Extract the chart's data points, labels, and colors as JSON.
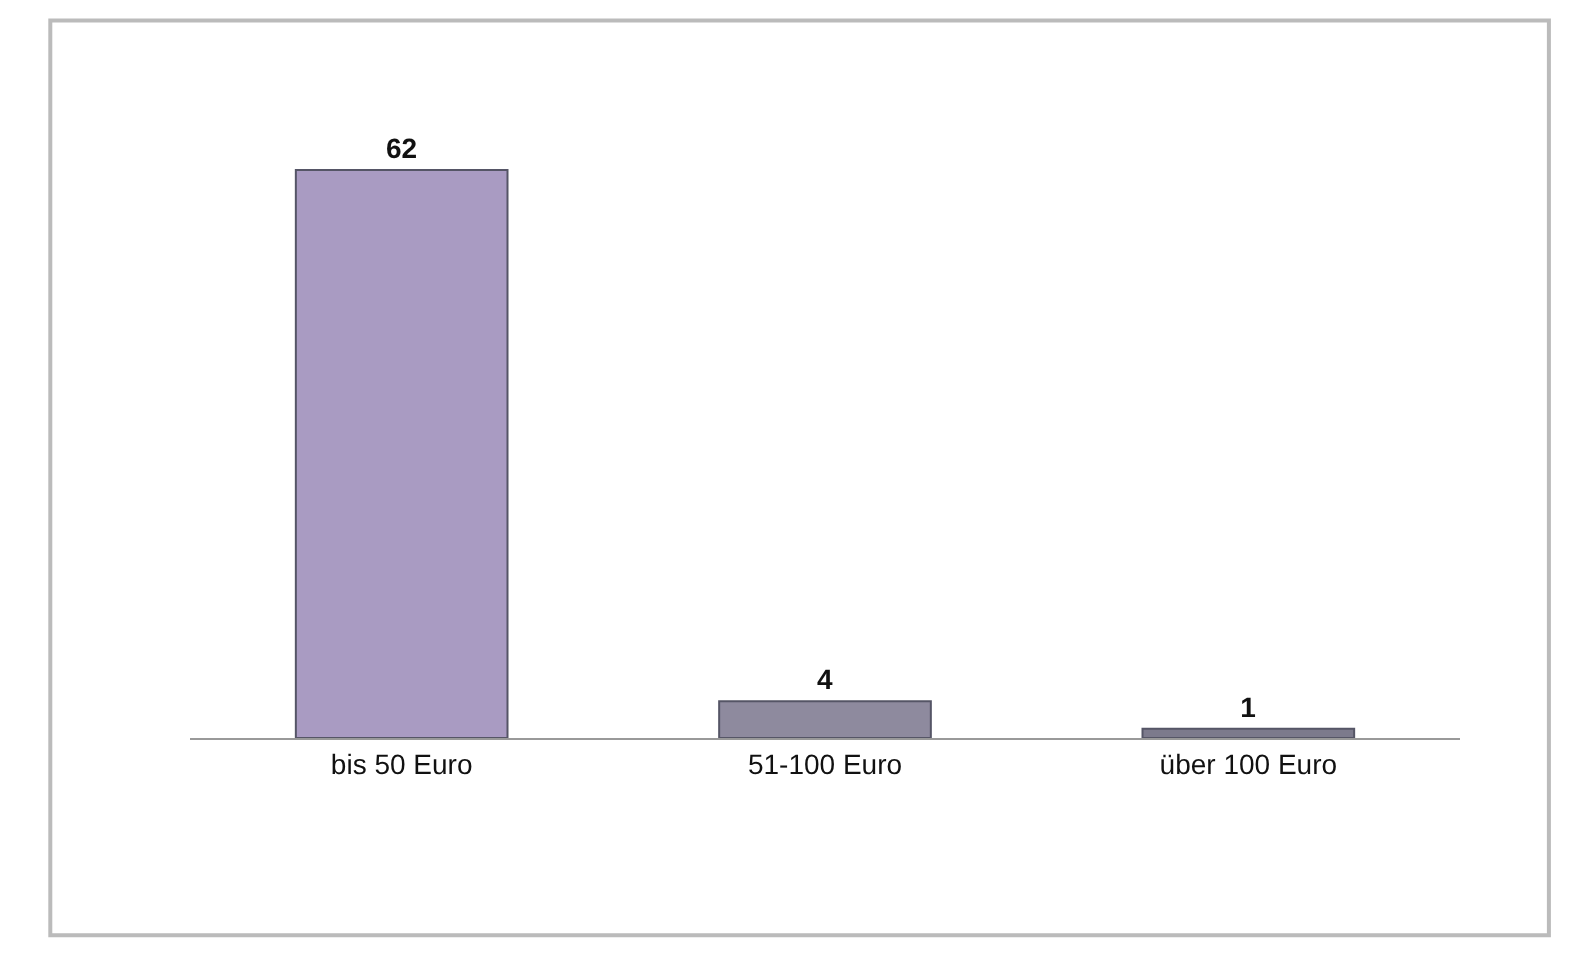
{
  "chart_data": {
    "type": "bar",
    "categories": [
      "bis 50 Euro",
      "51-100 Euro",
      "über 100 Euro"
    ],
    "values": [
      62,
      4,
      1
    ],
    "colors": [
      "#a99bc2",
      "#8e8a9e",
      "#7c7a8c"
    ],
    "data_labels": true,
    "tick_labels": "x"
  }
}
